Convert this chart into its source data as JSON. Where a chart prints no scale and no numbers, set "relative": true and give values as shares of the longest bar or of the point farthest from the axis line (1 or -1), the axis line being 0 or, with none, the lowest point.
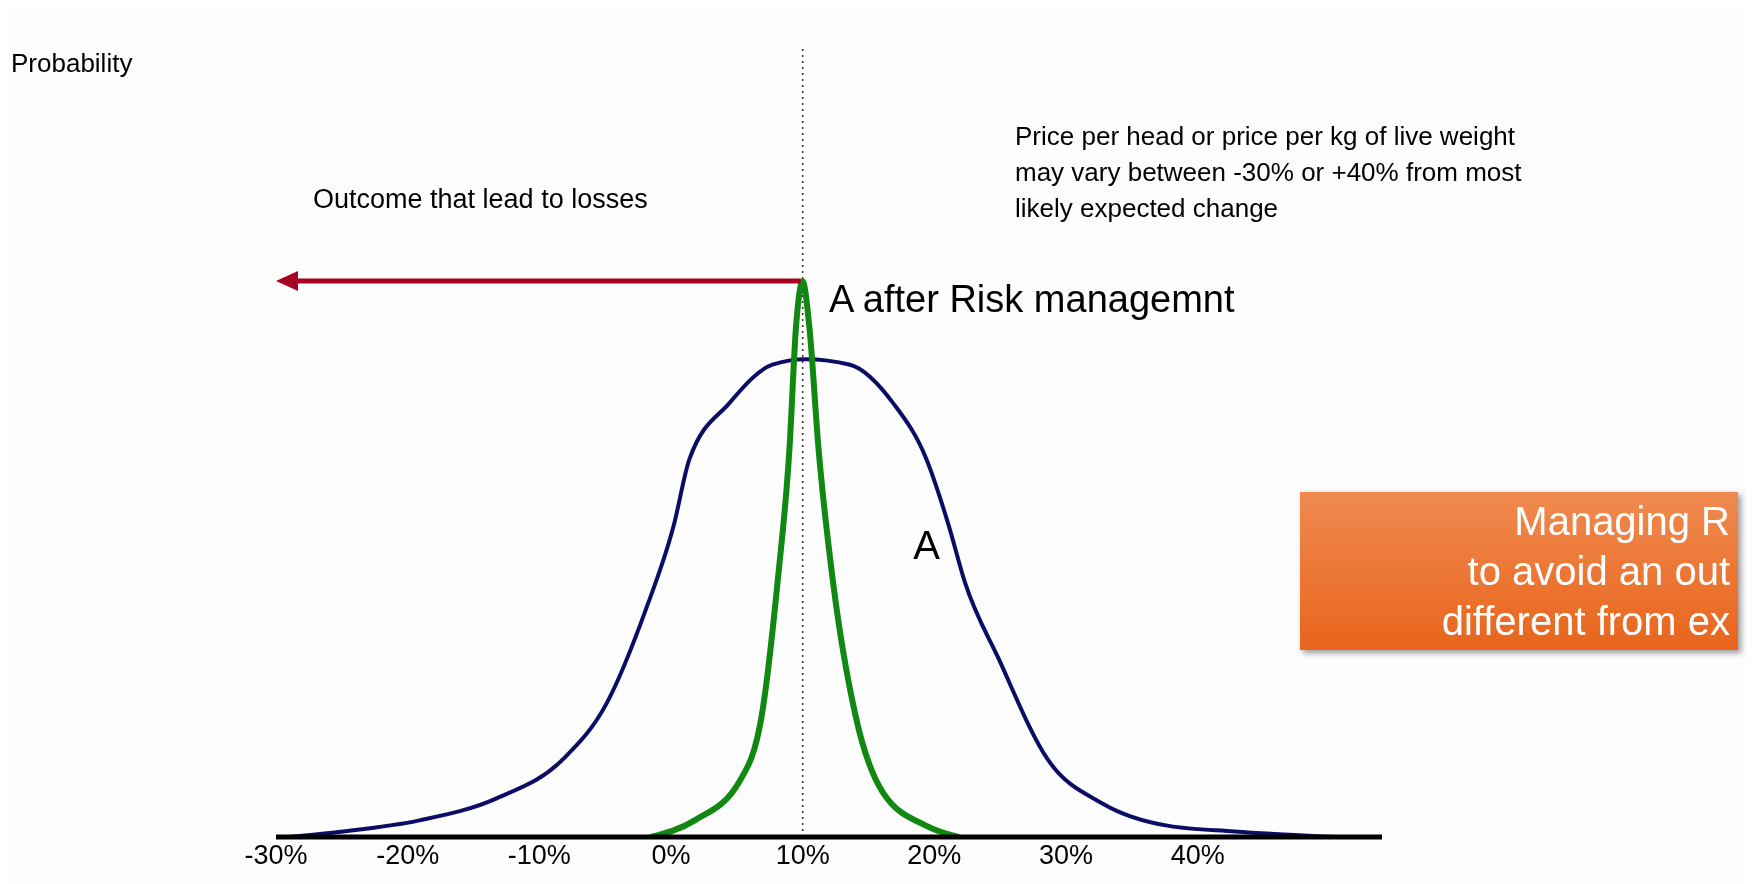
{
  "chart_data": {
    "type": "line",
    "relative": true,
    "xlim": [
      -30,
      54
    ],
    "xticks": [
      {
        "value": -30,
        "label": "-30%"
      },
      {
        "value": -20,
        "label": "-20%"
      },
      {
        "value": -10,
        "label": "-10%"
      },
      {
        "value": 0,
        "label": "0%"
      },
      {
        "value": 10,
        "label": "10%"
      },
      {
        "value": 20,
        "label": "20%"
      },
      {
        "value": 30,
        "label": "30%"
      },
      {
        "value": 40,
        "label": "40%"
      }
    ],
    "series": [
      {
        "name": "A",
        "color": "#0c0c66",
        "x": [
          -29.1,
          -24.9,
          -19.1,
          -13.2,
          -8.2,
          -4.9,
          -1.9,
          0.2,
          1.4,
          4.4,
          7.7,
          10.2,
          13.6,
          16.9,
          19.4,
          21.1,
          22.3,
          24.9,
          28.6,
          32.8,
          37.8,
          42.8,
          50.4
        ],
        "values": [
          0,
          0.01,
          0.03,
          0.07,
          0.14,
          0.24,
          0.41,
          0.56,
          0.68,
          0.78,
          0.85,
          0.86,
          0.85,
          0.78,
          0.68,
          0.56,
          0.46,
          0.32,
          0.14,
          0.06,
          0.02,
          0.01,
          0
        ]
      },
      {
        "name": "A after Risk managemnt",
        "color": "#118811",
        "x": [
          -1.5,
          1.8,
          5.2,
          6.9,
          8.1,
          9.0,
          9.5,
          10.0,
          10.5,
          11.2,
          12.3,
          14.0,
          16.1,
          19.4,
          21.8
        ],
        "values": [
          0,
          0.03,
          0.1,
          0.22,
          0.46,
          0.7,
          0.92,
          1,
          0.92,
          0.7,
          0.46,
          0.22,
          0.08,
          0.02,
          0
        ]
      }
    ],
    "ref_lines": [
      {
        "axis": "x",
        "value": 10,
        "color": "#333333",
        "line_style": "dotted"
      }
    ],
    "annotations": [
      "Probability",
      "Outcome that lead to losses",
      "Price per head or price per kg of live weight\nmay vary between -30% or +40% from most\nlikely expected change",
      "Managing R\nto avoid an out\ndifferent from ex"
    ],
    "grid": false,
    "legend": false,
    "marker": "none",
    "line_style": "solid"
  }
}
